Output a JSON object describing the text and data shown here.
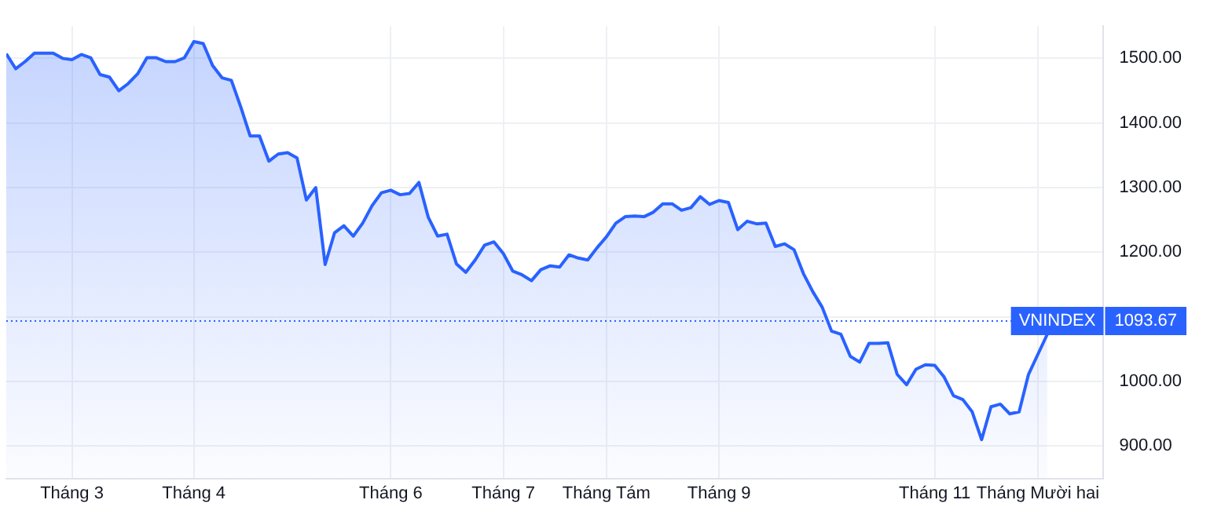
{
  "chart_data": {
    "type": "area",
    "categories": [
      null,
      null,
      null,
      null,
      null,
      null,
      null,
      "Tháng 3",
      null,
      null,
      null,
      null,
      null,
      null,
      null,
      null,
      null,
      null,
      null,
      null,
      "Tháng 4",
      null,
      null,
      null,
      null,
      null,
      null,
      null,
      null,
      null,
      null,
      null,
      null,
      null,
      null,
      null,
      null,
      null,
      null,
      null,
      null,
      "Tháng 6",
      null,
      null,
      null,
      null,
      null,
      null,
      null,
      null,
      null,
      null,
      null,
      "Tháng 7",
      null,
      null,
      null,
      null,
      null,
      null,
      null,
      null,
      null,
      null,
      "Tháng Tám",
      null,
      null,
      null,
      null,
      null,
      null,
      null,
      null,
      null,
      null,
      null,
      "Tháng 9",
      null,
      null,
      null,
      null,
      null,
      null,
      null,
      null,
      null,
      null,
      null,
      null,
      null,
      null,
      null,
      null,
      null,
      null,
      null,
      null,
      null,
      null,
      "Tháng 11",
      null,
      null,
      null,
      null,
      null,
      null,
      null,
      null,
      null,
      null,
      "Tháng Mười hai",
      null
    ],
    "series": [
      {
        "color": "#2962ff",
        "values": [
          1507,
          1484,
          1495,
          1508,
          1508,
          1508,
          1500,
          1498,
          1506,
          1501,
          1475,
          1471,
          1450,
          1461,
          1476,
          1501,
          1501,
          1495,
          1495,
          1501,
          1526,
          1523,
          1489,
          1470,
          1466,
          1425,
          1380,
          1380,
          1341,
          1352,
          1354,
          1346,
          1281,
          1300,
          1181,
          1230,
          1241,
          1225,
          1245,
          1272,
          1292,
          1296,
          1289,
          1291,
          1308,
          1254,
          1225,
          1228,
          1182,
          1169,
          1188,
          1211,
          1216,
          1198,
          1171,
          1165,
          1156,
          1173,
          1179,
          1177,
          1196,
          1191,
          1188,
          1207,
          1224,
          1245,
          1255,
          1256,
          1255,
          1262,
          1275,
          1275,
          1265,
          1269,
          1286,
          1274,
          1280,
          1277,
          1235,
          1248,
          1244,
          1245,
          1209,
          1213,
          1204,
          1167,
          1139,
          1115,
          1078,
          1073,
          1039,
          1030,
          1059,
          1059,
          1060,
          1011,
          995,
          1019,
          1026,
          1025,
          1007,
          978,
          972,
          953,
          910,
          961,
          965,
          950,
          953,
          1011,
          1042,
          1073
        ]
      }
    ],
    "ylim": [
      850,
      1550
    ],
    "yticks": [
      {
        "value": 900,
        "label": "900.00"
      },
      {
        "value": 1000,
        "label": "1000.00"
      },
      {
        "value": 1100,
        "label": null
      },
      {
        "value": 1200,
        "label": "1200.00"
      },
      {
        "value": 1300,
        "label": "1300.00"
      },
      {
        "value": 1400,
        "label": "1400.00"
      },
      {
        "value": 1500,
        "label": "1500.00"
      }
    ],
    "ref_lines": [
      {
        "axis": "y",
        "value": 1093.67,
        "label": "VNINDEX",
        "color": "#2962ff",
        "line_style": "dotted"
      }
    ],
    "annotations": [
      "1093.67"
    ],
    "grid": true,
    "legend": false,
    "marker": "none",
    "line_style": "solid"
  }
}
